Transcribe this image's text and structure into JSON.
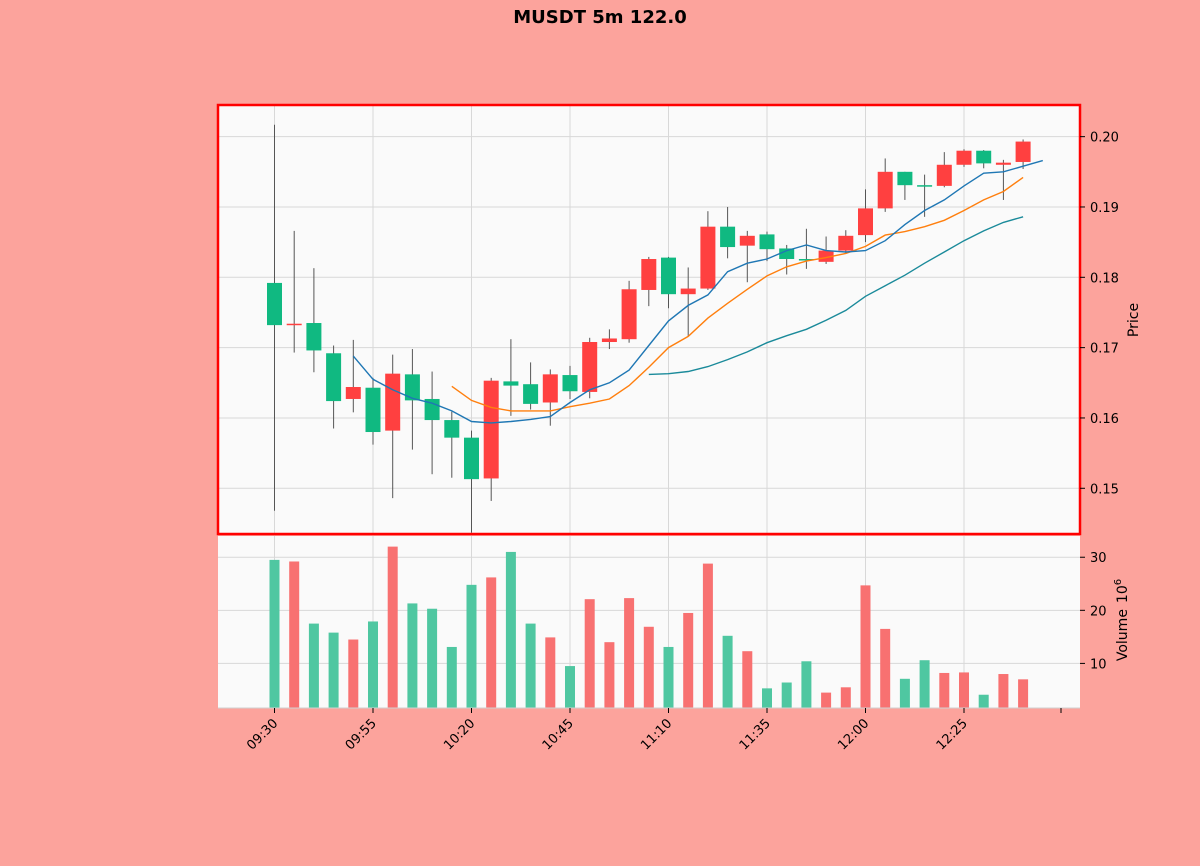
{
  "chart_data": {
    "type": "candlestick",
    "title": "MUSDT 5m 122.0",
    "ylabel": "Price",
    "volume_label": "Volume",
    "volume_exponent_label": "10",
    "volume_exponent": "6",
    "price_ylim": [
      0.1435,
      0.2045
    ],
    "volume_ylim": [
      1.6,
      34
    ],
    "grid": true,
    "price_ticks": [
      {
        "value": 0.15,
        "label": "0.15"
      },
      {
        "value": 0.16,
        "label": "0.16"
      },
      {
        "value": 0.17,
        "label": "0.17"
      },
      {
        "value": 0.18,
        "label": "0.18"
      },
      {
        "value": 0.19,
        "label": "0.19"
      },
      {
        "value": 0.2,
        "label": "0.20"
      }
    ],
    "volume_ticks": [
      {
        "value": 10,
        "label": "10"
      },
      {
        "value": 20,
        "label": "20"
      },
      {
        "value": 30,
        "label": "30"
      }
    ],
    "x_ticks": [
      {
        "index": 0,
        "label": "09:30"
      },
      {
        "index": 5,
        "label": "09:55"
      },
      {
        "index": 10,
        "label": "10:20"
      },
      {
        "index": 15,
        "label": "10:45"
      },
      {
        "index": 20,
        "label": "11:10"
      },
      {
        "index": 25,
        "label": "11:35"
      },
      {
        "index": 30,
        "label": "12:00"
      },
      {
        "index": 35,
        "label": "12:25"
      }
    ],
    "colors": {
      "up": "#10b981",
      "down": "#ff4040",
      "up_volume": "#4fc7a1",
      "down_volume": "#f87171",
      "wick": "#555555",
      "sma_short": "#1f77b4",
      "sma_mid": "#ff7f0e",
      "sma_long": "#1a8a9a",
      "panel_border": "#ff0000"
    },
    "candles": [
      {
        "o": 0.1732,
        "h": 0.2017,
        "l": 0.1468,
        "c": 0.1792,
        "v": 29.5
      },
      {
        "o": 0.1734,
        "h": 0.1866,
        "l": 0.1693,
        "c": 0.1732,
        "v": 29.2
      },
      {
        "o": 0.1696,
        "h": 0.1813,
        "l": 0.1665,
        "c": 0.1735,
        "v": 17.5
      },
      {
        "o": 0.1624,
        "h": 0.1703,
        "l": 0.1585,
        "c": 0.1692,
        "v": 15.8
      },
      {
        "o": 0.1644,
        "h": 0.1711,
        "l": 0.1608,
        "c": 0.1627,
        "v": 14.5
      },
      {
        "o": 0.158,
        "h": 0.1657,
        "l": 0.1562,
        "c": 0.1643,
        "v": 17.9
      },
      {
        "o": 0.1663,
        "h": 0.169,
        "l": 0.1486,
        "c": 0.1582,
        "v": 32.0
      },
      {
        "o": 0.1625,
        "h": 0.1698,
        "l": 0.1555,
        "c": 0.1662,
        "v": 21.3
      },
      {
        "o": 0.1597,
        "h": 0.1666,
        "l": 0.152,
        "c": 0.1627,
        "v": 20.3
      },
      {
        "o": 0.1572,
        "h": 0.1609,
        "l": 0.1515,
        "c": 0.1597,
        "v": 13.1
      },
      {
        "o": 0.1513,
        "h": 0.1582,
        "l": 0.1437,
        "c": 0.1572,
        "v": 24.8
      },
      {
        "o": 0.1653,
        "h": 0.1657,
        "l": 0.1482,
        "c": 0.1514,
        "v": 26.2
      },
      {
        "o": 0.1646,
        "h": 0.1712,
        "l": 0.1603,
        "c": 0.1652,
        "v": 31.0
      },
      {
        "o": 0.162,
        "h": 0.1679,
        "l": 0.1612,
        "c": 0.1648,
        "v": 17.5
      },
      {
        "o": 0.1662,
        "h": 0.1669,
        "l": 0.1589,
        "c": 0.1622,
        "v": 14.9
      },
      {
        "o": 0.1638,
        "h": 0.1674,
        "l": 0.1627,
        "c": 0.1661,
        "v": 9.5
      },
      {
        "o": 0.1708,
        "h": 0.1714,
        "l": 0.1628,
        "c": 0.1637,
        "v": 22.1
      },
      {
        "o": 0.1713,
        "h": 0.1726,
        "l": 0.1698,
        "c": 0.1708,
        "v": 14.0
      },
      {
        "o": 0.1783,
        "h": 0.1795,
        "l": 0.1707,
        "c": 0.1712,
        "v": 22.3
      },
      {
        "o": 0.1826,
        "h": 0.1829,
        "l": 0.1759,
        "c": 0.1782,
        "v": 16.9
      },
      {
        "o": 0.1776,
        "h": 0.1829,
        "l": 0.1756,
        "c": 0.1828,
        "v": 13.1
      },
      {
        "o": 0.1784,
        "h": 0.1814,
        "l": 0.1716,
        "c": 0.1776,
        "v": 19.5
      },
      {
        "o": 0.1872,
        "h": 0.1894,
        "l": 0.1782,
        "c": 0.1784,
        "v": 28.8
      },
      {
        "o": 0.1843,
        "h": 0.19,
        "l": 0.1827,
        "c": 0.1872,
        "v": 15.2
      },
      {
        "o": 0.1859,
        "h": 0.1866,
        "l": 0.1793,
        "c": 0.1845,
        "v": 12.3
      },
      {
        "o": 0.184,
        "h": 0.1865,
        "l": 0.1823,
        "c": 0.1861,
        "v": 5.3
      },
      {
        "o": 0.1826,
        "h": 0.1846,
        "l": 0.1804,
        "c": 0.1841,
        "v": 6.4
      },
      {
        "o": 0.1825,
        "h": 0.1869,
        "l": 0.1812,
        "c": 0.1826,
        "v": 10.4
      },
      {
        "o": 0.1838,
        "h": 0.1858,
        "l": 0.1819,
        "c": 0.1822,
        "v": 4.5
      },
      {
        "o": 0.1859,
        "h": 0.1867,
        "l": 0.1834,
        "c": 0.1838,
        "v": 5.5
      },
      {
        "o": 0.1898,
        "h": 0.1925,
        "l": 0.185,
        "c": 0.186,
        "v": 24.7
      },
      {
        "o": 0.195,
        "h": 0.1969,
        "l": 0.1893,
        "c": 0.1898,
        "v": 16.5
      },
      {
        "o": 0.1931,
        "h": 0.195,
        "l": 0.191,
        "c": 0.195,
        "v": 7.1
      },
      {
        "o": 0.193,
        "h": 0.1946,
        "l": 0.1886,
        "c": 0.1931,
        "v": 10.6
      },
      {
        "o": 0.196,
        "h": 0.1978,
        "l": 0.1928,
        "c": 0.193,
        "v": 8.2
      },
      {
        "o": 0.198,
        "h": 0.1982,
        "l": 0.1957,
        "c": 0.196,
        "v": 8.3
      },
      {
        "o": 0.1962,
        "h": 0.1981,
        "l": 0.1955,
        "c": 0.198,
        "v": 4.1
      },
      {
        "o": 0.1963,
        "h": 0.1967,
        "l": 0.191,
        "c": 0.196,
        "v": 8.0
      },
      {
        "o": 0.1993,
        "h": 0.1996,
        "l": 0.1954,
        "c": 0.1964,
        "v": 7.0
      }
    ],
    "sma_short": [
      [
        4,
        0.1688
      ],
      [
        5,
        0.1655
      ],
      [
        6,
        0.164
      ],
      [
        7,
        0.1628
      ],
      [
        8,
        0.1621
      ],
      [
        9,
        0.161
      ],
      [
        10,
        0.1595
      ],
      [
        11,
        0.1593
      ],
      [
        12,
        0.1595
      ],
      [
        13,
        0.1598
      ],
      [
        14,
        0.1602
      ],
      [
        15,
        0.1622
      ],
      [
        16,
        0.164
      ],
      [
        17,
        0.165
      ],
      [
        18,
        0.1668
      ],
      [
        19,
        0.1703
      ],
      [
        20,
        0.1738
      ],
      [
        21,
        0.176
      ],
      [
        22,
        0.1775
      ],
      [
        23,
        0.1808
      ],
      [
        24,
        0.182
      ],
      [
        25,
        0.1826
      ],
      [
        26,
        0.1838
      ],
      [
        27,
        0.1846
      ],
      [
        28,
        0.1838
      ],
      [
        29,
        0.1836
      ],
      [
        30,
        0.1838
      ],
      [
        31,
        0.1852
      ],
      [
        32,
        0.1875
      ],
      [
        33,
        0.1895
      ],
      [
        34,
        0.191
      ],
      [
        35,
        0.193
      ],
      [
        36,
        0.1948
      ],
      [
        37,
        0.195
      ],
      [
        38,
        0.1958
      ],
      [
        39,
        0.1966
      ]
    ],
    "sma_mid": [
      [
        9,
        0.1645
      ],
      [
        10,
        0.1625
      ],
      [
        11,
        0.1615
      ],
      [
        12,
        0.161
      ],
      [
        13,
        0.161
      ],
      [
        14,
        0.161
      ],
      [
        15,
        0.1616
      ],
      [
        16,
        0.1621
      ],
      [
        17,
        0.1627
      ],
      [
        18,
        0.1646
      ],
      [
        19,
        0.1672
      ],
      [
        20,
        0.17
      ],
      [
        21,
        0.1716
      ],
      [
        22,
        0.1742
      ],
      [
        23,
        0.1763
      ],
      [
        24,
        0.1783
      ],
      [
        25,
        0.1802
      ],
      [
        26,
        0.1815
      ],
      [
        27,
        0.1823
      ],
      [
        28,
        0.1828
      ],
      [
        29,
        0.1834
      ],
      [
        30,
        0.1844
      ],
      [
        31,
        0.186
      ],
      [
        32,
        0.1865
      ],
      [
        33,
        0.1872
      ],
      [
        34,
        0.1881
      ],
      [
        35,
        0.1895
      ],
      [
        36,
        0.191
      ],
      [
        37,
        0.1922
      ],
      [
        38,
        0.1942
      ]
    ],
    "sma_long": [
      [
        19,
        0.1662
      ],
      [
        20,
        0.1663
      ],
      [
        21,
        0.1666
      ],
      [
        22,
        0.1673
      ],
      [
        23,
        0.1683
      ],
      [
        24,
        0.1694
      ],
      [
        25,
        0.1707
      ],
      [
        26,
        0.1717
      ],
      [
        27,
        0.1726
      ],
      [
        28,
        0.1739
      ],
      [
        29,
        0.1753
      ],
      [
        30,
        0.1773
      ],
      [
        31,
        0.1788
      ],
      [
        32,
        0.1803
      ],
      [
        33,
        0.182
      ],
      [
        34,
        0.1836
      ],
      [
        35,
        0.1852
      ],
      [
        36,
        0.1866
      ],
      [
        37,
        0.1878
      ],
      [
        38,
        0.1886
      ]
    ]
  }
}
